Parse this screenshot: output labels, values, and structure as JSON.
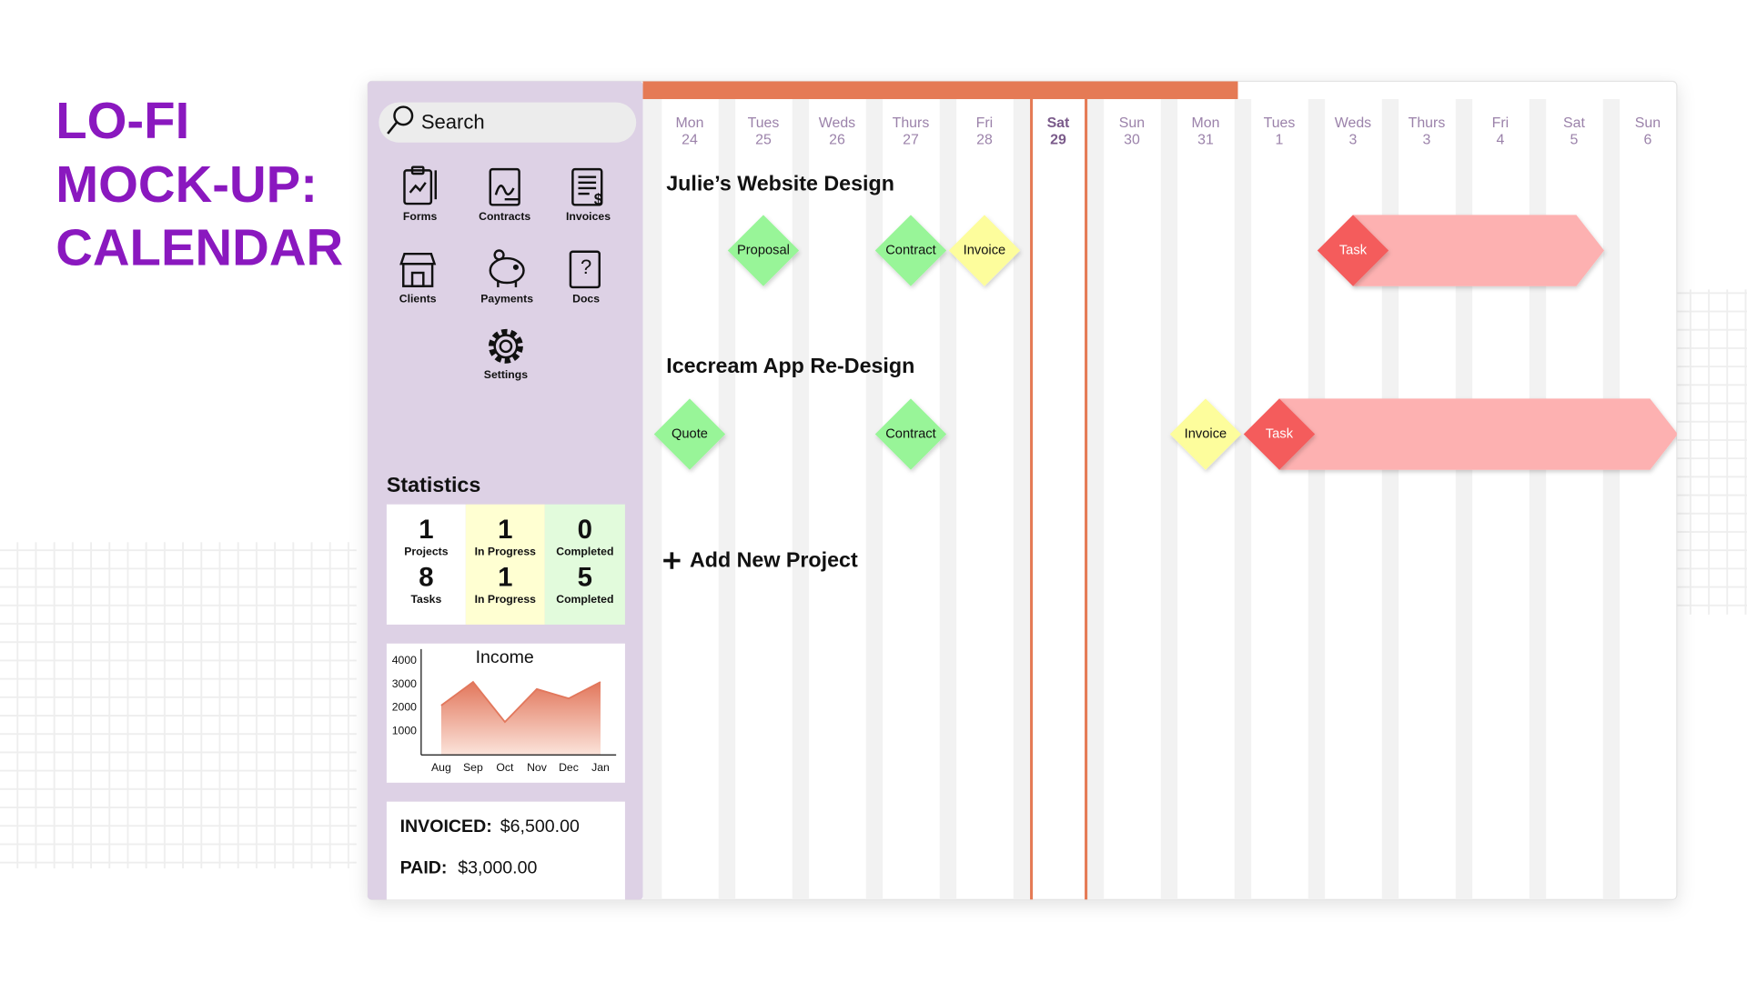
{
  "title": [
    "LO-FI",
    "MOCK-UP:",
    "CALENDAR"
  ],
  "search_placeholder": "Search",
  "nav": [
    "Forms",
    "Contracts",
    "Invoices",
    "Clients",
    "Payments",
    "Docs",
    "Settings"
  ],
  "statistics": {
    "heading": "Statistics",
    "columns": [
      {
        "color": "#ffffff",
        "items": [
          {
            "value": 1,
            "label": "Projects"
          },
          {
            "value": 8,
            "label": "Tasks"
          }
        ]
      },
      {
        "color": "#ffffd2",
        "items": [
          {
            "value": 1,
            "label": "In Progress"
          },
          {
            "value": 1,
            "label": "In Progress"
          }
        ]
      },
      {
        "color": "#e2fbdc",
        "items": [
          {
            "value": 0,
            "label": "Completed"
          },
          {
            "value": 5,
            "label": "Completed"
          }
        ]
      }
    ]
  },
  "chart_data": {
    "type": "area",
    "title": "Income",
    "categories": [
      "Aug",
      "Sep",
      "Oct",
      "Nov",
      "Dec",
      "Jan"
    ],
    "values": [
      2100,
      3100,
      1400,
      2800,
      2400,
      3100
    ],
    "color": "#e2775c",
    "ylim": [
      0,
      4500
    ],
    "yticks": [
      1000,
      2000,
      3000,
      4000
    ],
    "grid": false
  },
  "summary": [
    {
      "label": "INVOICED:",
      "value": "$6,500.00"
    },
    {
      "label": "PAID:",
      "value": "$3,000.00"
    }
  ],
  "calendar": {
    "days": [
      {
        "name": "Mon",
        "date": 24
      },
      {
        "name": "Tues",
        "date": 25
      },
      {
        "name": "Weds",
        "date": 26
      },
      {
        "name": "Thurs",
        "date": 27
      },
      {
        "name": "Fri",
        "date": 28
      },
      {
        "name": "Sat",
        "date": 29,
        "selected": true
      },
      {
        "name": "Sun",
        "date": 30
      },
      {
        "name": "Mon",
        "date": 31
      },
      {
        "name": "Tues",
        "date": 1
      },
      {
        "name": "Weds",
        "date": 3
      },
      {
        "name": "Thurs",
        "date": 3
      },
      {
        "name": "Fri",
        "date": 4
      },
      {
        "name": "Sat",
        "date": 5
      },
      {
        "name": "Sun",
        "date": 6
      }
    ],
    "accent_color": "#e57a55"
  },
  "projects": [
    {
      "name": "Julie’s Website Design",
      "milestones": [
        {
          "label": "Proposal",
          "day": 1,
          "color": "#98f598"
        },
        {
          "label": "Contract",
          "day": 3,
          "color": "#98f598"
        },
        {
          "label": "Invoice",
          "day": 4,
          "color": "#fdfd9c"
        },
        {
          "label": "Task",
          "day": 9,
          "until": 12,
          "color": "#f45b5b",
          "bar_color": "#fdb1b1"
        }
      ]
    },
    {
      "name": "Icecream App Re-Design",
      "milestones": [
        {
          "label": "Quote",
          "day": 0,
          "color": "#98f598"
        },
        {
          "label": "Contract",
          "day": 3,
          "color": "#98f598"
        },
        {
          "label": "Invoice",
          "day": 7,
          "color": "#fdfd9c"
        },
        {
          "label": "Task",
          "day": 8,
          "until": 13,
          "color": "#f45b5b",
          "bar_color": "#fdb1b1"
        }
      ]
    }
  ],
  "add_project": "Add New Project"
}
